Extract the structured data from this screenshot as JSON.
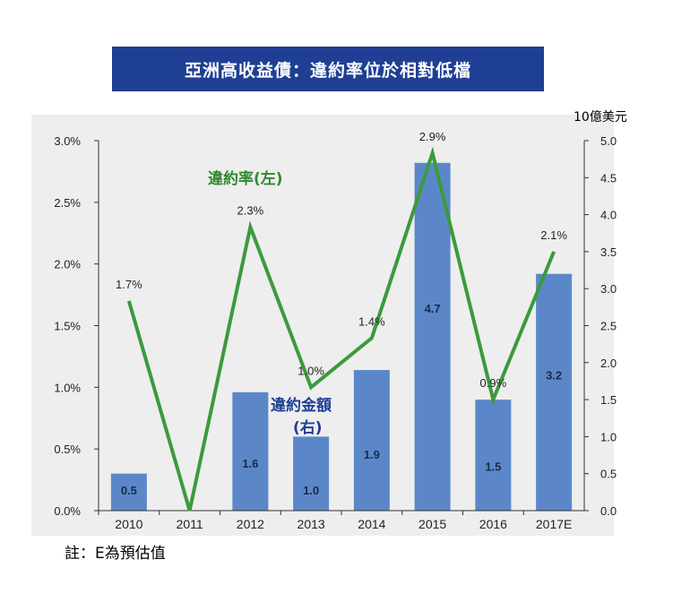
{
  "title": "亞洲高收益債：違約率位於相對低檔",
  "unit_label": "10億美元",
  "footnote": "註：E為預估值",
  "colors": {
    "title_bg": "#1f3f94",
    "bar": "#5b87c9",
    "line": "#3c9a3c",
    "plot_bg": "#eeeeee"
  },
  "chart_data": {
    "type": "bar+line",
    "categories": [
      "2010",
      "2011",
      "2012",
      "2013",
      "2014",
      "2015",
      "2016",
      "2017E"
    ],
    "series": [
      {
        "name": "違約金額(右)",
        "type": "bar",
        "axis": "right",
        "values": [
          0.5,
          0,
          1.6,
          1.0,
          1.9,
          4.7,
          1.5,
          3.2
        ],
        "labels": [
          "0.5",
          "",
          "1.6",
          "1.0",
          "1.9",
          "4.7",
          "1.5",
          "3.2"
        ]
      },
      {
        "name": "違約率(左)",
        "type": "line",
        "axis": "left",
        "values": [
          1.7,
          0.0,
          2.3,
          1.0,
          1.4,
          2.9,
          0.9,
          2.1
        ],
        "labels": [
          "1.7%",
          "",
          "2.3%",
          "1.0%",
          "1.4%",
          "2.9%",
          "0.9%",
          "2.1%"
        ]
      }
    ],
    "left_axis": {
      "ylim": [
        0,
        3.0
      ],
      "ticks": [
        "0.0%",
        "0.5%",
        "1.0%",
        "1.5%",
        "2.0%",
        "2.5%",
        "3.0%"
      ]
    },
    "right_axis": {
      "ylim": [
        0,
        5.0
      ],
      "ticks": [
        "0.0",
        "0.5",
        "1.0",
        "1.5",
        "2.0",
        "2.5",
        "3.0",
        "3.5",
        "4.0",
        "4.5",
        "5.0"
      ]
    },
    "annotations": {
      "line_label": "違約率(左)",
      "bar_label_line1": "違約金額",
      "bar_label_line2": "(右)"
    },
    "grid": false
  }
}
